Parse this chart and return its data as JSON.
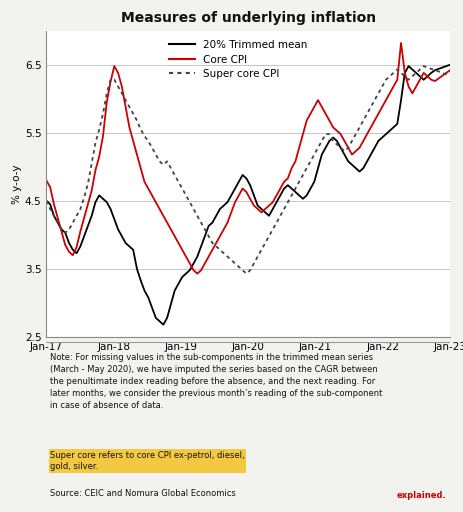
{
  "title": "Measures of underlying inflation",
  "ylabel": "% y-o-y",
  "ylim": [
    2.5,
    7.0
  ],
  "yticks": [
    2.5,
    3.5,
    4.5,
    5.5,
    6.5
  ],
  "xtick_labels": [
    "Jan-17",
    "Jan-18",
    "Jan-19",
    "Jan-20",
    "Jan-21",
    "Jan-22",
    "Jan-23"
  ],
  "note_plain": "Note: For missing values in the sub-components in the trimmed mean series\n(March - May 2020), we have imputed the series based on the CAGR between\nthe penultimate index reading before the absence, and the next reading. For\nlater months, we consider the previous month’s reading of the sub-component\nin case of absence of data. ",
  "note_highlighted": "Super core refers to core CPI ex-petrol, diesel,\ngold, silver.",
  "source_text": "Source: CEIC and Nomura Global Economics",
  "background_color": "#f2f2ee",
  "plot_bg_color": "#ffffff",
  "trimmed_mean_color": "#000000",
  "core_cpi_color": "#cc0000",
  "super_core_color": "#444444",
  "highlight_color": "#f5c842",
  "trimmed_mean": [
    4.5,
    4.45,
    4.28,
    4.18,
    4.08,
    4.03,
    3.88,
    3.78,
    3.73,
    3.83,
    3.98,
    4.13,
    4.28,
    4.48,
    4.58,
    4.53,
    4.48,
    4.38,
    4.23,
    4.08,
    3.98,
    3.88,
    3.83,
    3.78,
    3.5,
    3.33,
    3.18,
    3.08,
    2.93,
    2.78,
    2.73,
    2.68,
    2.78,
    2.98,
    3.18,
    3.28,
    3.38,
    3.43,
    3.48,
    3.58,
    3.68,
    3.83,
    3.98,
    4.13,
    4.18,
    4.28,
    4.38,
    4.43,
    4.48,
    4.58,
    4.68,
    4.78,
    4.88,
    4.83,
    4.73,
    4.58,
    4.43,
    4.38,
    4.33,
    4.28,
    4.38,
    4.48,
    4.58,
    4.68,
    4.73,
    4.68,
    4.63,
    4.58,
    4.53,
    4.58,
    4.68,
    4.78,
    4.98,
    5.18,
    5.28,
    5.38,
    5.43,
    5.38,
    5.28,
    5.18,
    5.08,
    5.03,
    4.98,
    4.93,
    4.98,
    5.08,
    5.18,
    5.28,
    5.38,
    5.43,
    5.48,
    5.53,
    5.58,
    5.63,
    5.98,
    6.38,
    6.48,
    6.43,
    6.38,
    6.33,
    6.28,
    6.33,
    6.38,
    6.42,
    6.44,
    6.46,
    6.48,
    6.5
  ],
  "core_cpi": [
    4.8,
    4.7,
    4.45,
    4.25,
    4.05,
    3.85,
    3.75,
    3.7,
    3.82,
    4.05,
    4.25,
    4.45,
    4.65,
    4.95,
    5.15,
    5.45,
    5.95,
    6.25,
    6.48,
    6.38,
    6.18,
    5.88,
    5.58,
    5.38,
    5.18,
    4.98,
    4.78,
    4.68,
    4.58,
    4.48,
    4.38,
    4.28,
    4.18,
    4.08,
    3.98,
    3.88,
    3.78,
    3.68,
    3.58,
    3.48,
    3.43,
    3.48,
    3.58,
    3.68,
    3.78,
    3.88,
    3.98,
    4.08,
    4.18,
    4.33,
    4.48,
    4.58,
    4.68,
    4.63,
    4.53,
    4.43,
    4.38,
    4.33,
    4.38,
    4.43,
    4.48,
    4.58,
    4.68,
    4.78,
    4.83,
    4.98,
    5.08,
    5.28,
    5.48,
    5.68,
    5.78,
    5.88,
    5.98,
    5.88,
    5.78,
    5.68,
    5.58,
    5.53,
    5.48,
    5.38,
    5.28,
    5.18,
    5.23,
    5.28,
    5.38,
    5.48,
    5.58,
    5.68,
    5.78,
    5.88,
    5.98,
    6.08,
    6.18,
    6.28,
    6.82,
    6.38,
    6.18,
    6.08,
    6.18,
    6.28,
    6.38,
    6.33,
    6.28,
    6.26,
    6.3,
    6.34,
    6.38,
    6.42
  ],
  "super_core": [
    4.5,
    4.38,
    4.28,
    4.18,
    4.08,
    4.03,
    4.08,
    4.18,
    4.28,
    4.38,
    4.55,
    4.75,
    5.05,
    5.35,
    5.55,
    5.78,
    6.08,
    6.28,
    6.28,
    6.18,
    6.08,
    5.98,
    5.88,
    5.78,
    5.68,
    5.55,
    5.45,
    5.38,
    5.28,
    5.18,
    5.08,
    5.03,
    5.08,
    4.98,
    4.88,
    4.78,
    4.68,
    4.58,
    4.48,
    4.38,
    4.28,
    4.18,
    4.08,
    3.98,
    3.88,
    3.83,
    3.78,
    3.73,
    3.68,
    3.63,
    3.58,
    3.53,
    3.48,
    3.43,
    3.48,
    3.58,
    3.68,
    3.78,
    3.88,
    3.98,
    4.08,
    4.18,
    4.28,
    4.38,
    4.48,
    4.58,
    4.68,
    4.78,
    4.88,
    4.98,
    5.08,
    5.18,
    5.28,
    5.38,
    5.48,
    5.48,
    5.38,
    5.33,
    5.28,
    5.23,
    5.28,
    5.38,
    5.48,
    5.58,
    5.68,
    5.78,
    5.88,
    5.98,
    6.08,
    6.18,
    6.28,
    6.33,
    6.38,
    6.43,
    6.38,
    6.33,
    6.28,
    6.33,
    6.38,
    6.43,
    6.48,
    6.46,
    6.44,
    6.42,
    6.4,
    6.38,
    6.36,
    6.34
  ]
}
